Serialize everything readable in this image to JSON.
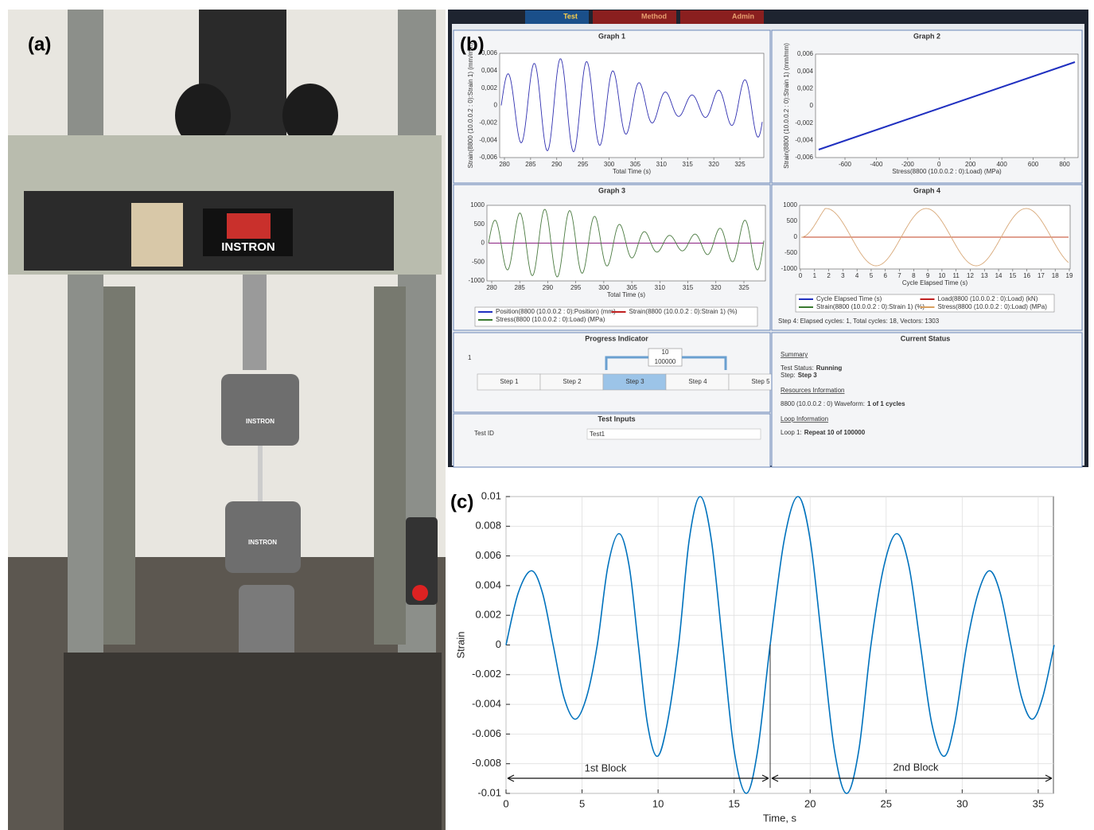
{
  "panel_labels": [
    "(a)",
    "(b)",
    "(c)"
  ],
  "photo": {
    "brand": "INSTRON"
  },
  "screenshot": {
    "tabs": [
      "Test",
      "Method",
      "Admin"
    ],
    "graphs": [
      {
        "title": "Graph 1",
        "xlabel": "Total Time (s)",
        "ylabel": "Strain(8800 (10.0.0.2 : 0):Strain 1) (mm/mm)",
        "xticks": [
          "280",
          "285",
          "290",
          "295",
          "300",
          "305",
          "310",
          "315",
          "320",
          "325"
        ],
        "yticks": [
          "0,006",
          "0,004",
          "0,002",
          "0",
          "-0,002",
          "-0,004",
          "-0,006"
        ]
      },
      {
        "title": "Graph 2",
        "xlabel": "Stress(8800 (10.0.0.2 : 0):Load) (MPa)",
        "ylabel": "Strain(8800 (10.0.0.2 : 0):Strain 1) (mm/mm)",
        "xticks": [
          "-600",
          "-400",
          "-200",
          "0",
          "200",
          "400",
          "600",
          "800"
        ],
        "yticks": [
          "0,006",
          "0,004",
          "0,002",
          "0",
          "-0,002",
          "-0,004",
          "-0,006"
        ]
      },
      {
        "title": "Graph 3",
        "xlabel": "Total Time (s)",
        "xticks": [
          "280",
          "285",
          "290",
          "295",
          "300",
          "305",
          "310",
          "315",
          "320",
          "325"
        ],
        "yticks": [
          "1000",
          "500",
          "0",
          "-500",
          "-1000"
        ],
        "legend": [
          {
            "name": "Position(8800 (10.0.0.2 : 0):Position) (mm)",
            "color": "#2030c0"
          },
          {
            "name": "Strain(8800 (10.0.0.2 : 0):Strain 1) (%)",
            "color": "#c02020"
          },
          {
            "name": "Stress(8800 (10.0.0.2 : 0):Load) (MPa)",
            "color": "#3a7a30"
          }
        ]
      },
      {
        "title": "Graph 4",
        "xlabel": "Cycle Elapsed Time (s)",
        "xticks": [
          "0",
          "1",
          "2",
          "3",
          "4",
          "5",
          "6",
          "7",
          "8",
          "9",
          "10",
          "11",
          "12",
          "13",
          "14",
          "15",
          "16",
          "17",
          "18",
          "19"
        ],
        "yticks": [
          "1000",
          "500",
          "0",
          "-500",
          "-1000"
        ],
        "legend": [
          {
            "name": "Cycle Elapsed Time (s)",
            "color": "#2030c0"
          },
          {
            "name": "Load(8800 (10.0.0.2 : 0):Load) (kN)",
            "color": "#c02020"
          },
          {
            "name": "Strain(8800 (10.0.0.2 : 0):Strain 1) (%)",
            "color": "#3a7a30"
          },
          {
            "name": "Stress(8800 (10.0.0.2 : 0):Load) (MPa)",
            "color": "#d8a060"
          }
        ],
        "note": "Step 4: Elapsed cycles: 1, Total cycles: 18, Vectors: 1303"
      }
    ],
    "progress": {
      "title": "Progress Indicator",
      "row": "1",
      "loop": "10",
      "total": "100000",
      "steps": [
        "Step 1",
        "Step 2",
        "Step 3",
        "Step 4",
        "Step 5"
      ]
    },
    "test_inputs": {
      "title": "Test Inputs",
      "field": "Test ID",
      "value": "Test1"
    },
    "status": {
      "title": "Current Status",
      "sections": [
        {
          "heading": "Summary",
          "items": [
            [
              "Test Status:",
              "Running"
            ],
            [
              "Step:",
              "Step 3"
            ]
          ]
        },
        {
          "heading": "Resources Information",
          "items": [
            [
              "8800 (10.0.0.2 : 0) Waveform:",
              "1 of 1 cycles"
            ]
          ]
        },
        {
          "heading": "Loop Information",
          "items": [
            [
              "Loop 1:",
              "Repeat 10 of 100000"
            ]
          ]
        }
      ]
    }
  },
  "chart_data": {
    "type": "line",
    "xlabel": "Time, s",
    "ylabel": "Strain",
    "grid": true,
    "annotations": [
      "1st Block",
      "2nd Block"
    ],
    "xlim": [
      0,
      36
    ],
    "ylim": [
      -0.01,
      0.01
    ],
    "xticks": [
      0,
      5,
      10,
      15,
      20,
      25,
      30,
      35
    ],
    "yticks": [
      -0.01,
      -0.008,
      -0.006,
      -0.004,
      -0.002,
      0,
      0.002,
      0.004,
      0.006,
      0.008,
      0.01
    ],
    "series": [
      {
        "name": "Strain",
        "color": "#0072bd",
        "x": [
          0,
          0.8,
          1.67,
          2.4,
          3.1,
          3.8,
          4.55,
          5.3,
          6.0,
          6.7,
          7.43,
          8.1,
          8.7,
          9.3,
          9.94,
          10.6,
          11.35,
          12.05,
          12.77,
          13.5,
          14.25,
          15.0,
          15.8,
          16.55,
          17.37,
          18.3,
          19.2,
          20.0,
          20.8,
          21.6,
          22.4,
          23.2,
          24.0,
          24.85,
          25.7,
          26.5,
          27.25,
          28.0,
          28.8,
          29.5,
          30.3,
          31.05,
          31.8,
          32.5,
          33.2,
          33.9,
          34.6,
          35.3,
          36.05
        ],
        "values": [
          0,
          0.0035,
          0.005,
          0.0035,
          0,
          -0.0035,
          -0.005,
          -0.0035,
          0,
          0.0053,
          0.0075,
          0.0053,
          0,
          -0.0053,
          -0.0075,
          -0.0053,
          0,
          0.0071,
          0.01,
          0.0071,
          0,
          -0.0071,
          -0.01,
          -0.0071,
          0,
          0.0071,
          0.01,
          0.0071,
          0,
          -0.0071,
          -0.01,
          -0.0071,
          0,
          0.0053,
          0.0075,
          0.0053,
          0,
          -0.0053,
          -0.0075,
          -0.0053,
          0,
          0.0035,
          0.005,
          0.0035,
          0,
          -0.0035,
          -0.005,
          -0.0035,
          0
        ]
      }
    ]
  }
}
